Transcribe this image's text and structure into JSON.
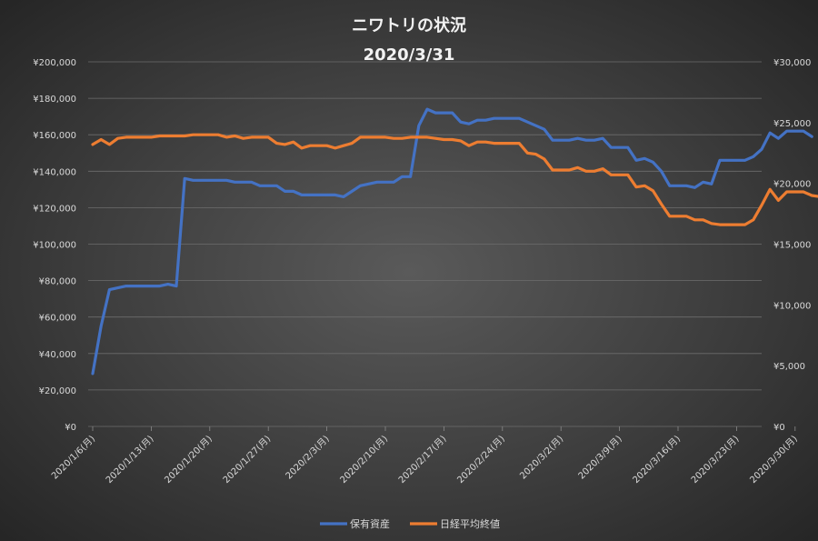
{
  "chart_data": {
    "type": "line",
    "title": "ニワトリの状況",
    "subtitle": "2020/3/31",
    "y_left_ticks": [
      "¥0",
      "¥20,000",
      "¥40,000",
      "¥60,000",
      "¥80,000",
      "¥100,000",
      "¥120,000",
      "¥140,000",
      "¥160,000",
      "¥180,000",
      "¥200,000"
    ],
    "y_right_ticks": [
      "¥0",
      "¥5,000",
      "¥10,000",
      "¥15,000",
      "¥20,000",
      "¥25,000",
      "¥30,000"
    ],
    "ylim_left": [
      0,
      200000
    ],
    "ylim_right": [
      0,
      30000
    ],
    "x_tick_labels": [
      "2020/1/6(月)",
      "2020/1/13(月)",
      "2020/1/20(月)",
      "2020/1/27(月)",
      "2020/2/3(月)",
      "2020/2/10(月)",
      "2020/2/17(月)",
      "2020/2/24(月)",
      "2020/3/2(月)",
      "2020/3/9(月)",
      "2020/3/16(月)",
      "2020/3/23(月)",
      "2020/3/30(月)"
    ],
    "x_start": "2020-01-06",
    "x_end": "2020-03-31",
    "grid": "horizontal",
    "legend_position": "bottom",
    "series": [
      {
        "name": "保有資産",
        "axis": "left",
        "color": "#4472c4",
        "points": [
          [
            "2020-01-06",
            29000
          ],
          [
            "2020-01-07",
            55000
          ],
          [
            "2020-01-08",
            75000
          ],
          [
            "2020-01-09",
            76000
          ],
          [
            "2020-01-10",
            77000
          ],
          [
            "2020-01-11",
            77000
          ],
          [
            "2020-01-12",
            77000
          ],
          [
            "2020-01-13",
            77000
          ],
          [
            "2020-01-14",
            77000
          ],
          [
            "2020-01-15",
            78000
          ],
          [
            "2020-01-16",
            77000
          ],
          [
            "2020-01-17",
            136000
          ],
          [
            "2020-01-18",
            135000
          ],
          [
            "2020-01-19",
            135000
          ],
          [
            "2020-01-20",
            135000
          ],
          [
            "2020-01-21",
            135000
          ],
          [
            "2020-01-22",
            135000
          ],
          [
            "2020-01-23",
            134000
          ],
          [
            "2020-01-24",
            134000
          ],
          [
            "2020-01-25",
            134000
          ],
          [
            "2020-01-26",
            132000
          ],
          [
            "2020-01-27",
            132000
          ],
          [
            "2020-01-28",
            132000
          ],
          [
            "2020-01-29",
            129000
          ],
          [
            "2020-01-30",
            129000
          ],
          [
            "2020-01-31",
            127000
          ],
          [
            "2020-02-01",
            127000
          ],
          [
            "2020-02-02",
            127000
          ],
          [
            "2020-02-03",
            127000
          ],
          [
            "2020-02-04",
            127000
          ],
          [
            "2020-02-05",
            126000
          ],
          [
            "2020-02-06",
            129000
          ],
          [
            "2020-02-07",
            132000
          ],
          [
            "2020-02-08",
            133000
          ],
          [
            "2020-02-09",
            134000
          ],
          [
            "2020-02-10",
            134000
          ],
          [
            "2020-02-11",
            134000
          ],
          [
            "2020-02-12",
            137000
          ],
          [
            "2020-02-13",
            137000
          ],
          [
            "2020-02-14",
            165000
          ],
          [
            "2020-02-15",
            174000
          ],
          [
            "2020-02-16",
            172000
          ],
          [
            "2020-02-17",
            172000
          ],
          [
            "2020-02-18",
            172000
          ],
          [
            "2020-02-19",
            167000
          ],
          [
            "2020-02-20",
            166000
          ],
          [
            "2020-02-21",
            168000
          ],
          [
            "2020-02-22",
            168000
          ],
          [
            "2020-02-23",
            169000
          ],
          [
            "2020-02-24",
            169000
          ],
          [
            "2020-02-25",
            169000
          ],
          [
            "2020-02-26",
            169000
          ],
          [
            "2020-02-27",
            167000
          ],
          [
            "2020-02-28",
            165000
          ],
          [
            "2020-02-29",
            163000
          ],
          [
            "2020-03-01",
            157000
          ],
          [
            "2020-03-02",
            157000
          ],
          [
            "2020-03-03",
            157000
          ],
          [
            "2020-03-04",
            158000
          ],
          [
            "2020-03-05",
            157000
          ],
          [
            "2020-03-06",
            157000
          ],
          [
            "2020-03-07",
            158000
          ],
          [
            "2020-03-08",
            153000
          ],
          [
            "2020-03-09",
            153000
          ],
          [
            "2020-03-10",
            153000
          ],
          [
            "2020-03-11",
            146000
          ],
          [
            "2020-03-12",
            147000
          ],
          [
            "2020-03-13",
            145000
          ],
          [
            "2020-03-14",
            140000
          ],
          [
            "2020-03-15",
            132000
          ],
          [
            "2020-03-16",
            132000
          ],
          [
            "2020-03-17",
            132000
          ],
          [
            "2020-03-18",
            131000
          ],
          [
            "2020-03-19",
            134000
          ],
          [
            "2020-03-20",
            133000
          ],
          [
            "2020-03-21",
            146000
          ],
          [
            "2020-03-22",
            146000
          ],
          [
            "2020-03-23",
            146000
          ],
          [
            "2020-03-24",
            146000
          ],
          [
            "2020-03-25",
            148000
          ],
          [
            "2020-03-26",
            152000
          ],
          [
            "2020-03-27",
            161000
          ],
          [
            "2020-03-28",
            158000
          ],
          [
            "2020-03-29",
            162000
          ],
          [
            "2020-03-30",
            162000
          ],
          [
            "2020-03-31",
            162000
          ],
          [
            "2020-04-01",
            159000
          ]
        ]
      },
      {
        "name": "日経平均終値",
        "axis": "right",
        "color": "#ed7d31",
        "points": [
          [
            "2020-01-06",
            23200
          ],
          [
            "2020-01-07",
            23600
          ],
          [
            "2020-01-08",
            23200
          ],
          [
            "2020-01-09",
            23700
          ],
          [
            "2020-01-10",
            23800
          ],
          [
            "2020-01-11",
            23800
          ],
          [
            "2020-01-12",
            23800
          ],
          [
            "2020-01-13",
            23800
          ],
          [
            "2020-01-14",
            23900
          ],
          [
            "2020-01-15",
            23900
          ],
          [
            "2020-01-16",
            23900
          ],
          [
            "2020-01-17",
            23900
          ],
          [
            "2020-01-18",
            24000
          ],
          [
            "2020-01-19",
            24000
          ],
          [
            "2020-01-20",
            24000
          ],
          [
            "2020-01-21",
            24000
          ],
          [
            "2020-01-22",
            23800
          ],
          [
            "2020-01-23",
            23900
          ],
          [
            "2020-01-24",
            23700
          ],
          [
            "2020-01-25",
            23800
          ],
          [
            "2020-01-26",
            23800
          ],
          [
            "2020-01-27",
            23800
          ],
          [
            "2020-01-28",
            23300
          ],
          [
            "2020-01-29",
            23200
          ],
          [
            "2020-01-30",
            23400
          ],
          [
            "2020-01-31",
            22900
          ],
          [
            "2020-02-01",
            23100
          ],
          [
            "2020-02-02",
            23100
          ],
          [
            "2020-02-03",
            23100
          ],
          [
            "2020-02-04",
            22900
          ],
          [
            "2020-02-05",
            23100
          ],
          [
            "2020-02-06",
            23300
          ],
          [
            "2020-02-07",
            23800
          ],
          [
            "2020-02-08",
            23800
          ],
          [
            "2020-02-09",
            23800
          ],
          [
            "2020-02-10",
            23800
          ],
          [
            "2020-02-11",
            23700
          ],
          [
            "2020-02-12",
            23700
          ],
          [
            "2020-02-13",
            23800
          ],
          [
            "2020-02-14",
            23800
          ],
          [
            "2020-02-15",
            23800
          ],
          [
            "2020-02-16",
            23700
          ],
          [
            "2020-02-17",
            23600
          ],
          [
            "2020-02-18",
            23600
          ],
          [
            "2020-02-19",
            23500
          ],
          [
            "2020-02-20",
            23100
          ],
          [
            "2020-02-21",
            23400
          ],
          [
            "2020-02-22",
            23400
          ],
          [
            "2020-02-23",
            23300
          ],
          [
            "2020-02-24",
            23300
          ],
          [
            "2020-02-25",
            23300
          ],
          [
            "2020-02-26",
            23300
          ],
          [
            "2020-02-27",
            22500
          ],
          [
            "2020-02-28",
            22400
          ],
          [
            "2020-02-29",
            22000
          ],
          [
            "2020-03-01",
            21100
          ],
          [
            "2020-03-02",
            21100
          ],
          [
            "2020-03-03",
            21100
          ],
          [
            "2020-03-04",
            21300
          ],
          [
            "2020-03-05",
            21000
          ],
          [
            "2020-03-06",
            21000
          ],
          [
            "2020-03-07",
            21200
          ],
          [
            "2020-03-08",
            20700
          ],
          [
            "2020-03-09",
            20700
          ],
          [
            "2020-03-10",
            20700
          ],
          [
            "2020-03-11",
            19700
          ],
          [
            "2020-03-12",
            19800
          ],
          [
            "2020-03-13",
            19400
          ],
          [
            "2020-03-14",
            18300
          ],
          [
            "2020-03-15",
            17300
          ],
          [
            "2020-03-16",
            17300
          ],
          [
            "2020-03-17",
            17300
          ],
          [
            "2020-03-18",
            17000
          ],
          [
            "2020-03-19",
            17000
          ],
          [
            "2020-03-20",
            16700
          ],
          [
            "2020-03-21",
            16600
          ],
          [
            "2020-03-22",
            16600
          ],
          [
            "2020-03-23",
            16600
          ],
          [
            "2020-03-24",
            16600
          ],
          [
            "2020-03-25",
            17000
          ],
          [
            "2020-03-26",
            18200
          ],
          [
            "2020-03-27",
            19500
          ],
          [
            "2020-03-28",
            18600
          ],
          [
            "2020-03-29",
            19300
          ],
          [
            "2020-03-30",
            19300
          ],
          [
            "2020-03-31",
            19300
          ],
          [
            "2020-04-01",
            19000
          ],
          [
            "2020-04-02",
            18900
          ]
        ]
      }
    ]
  }
}
